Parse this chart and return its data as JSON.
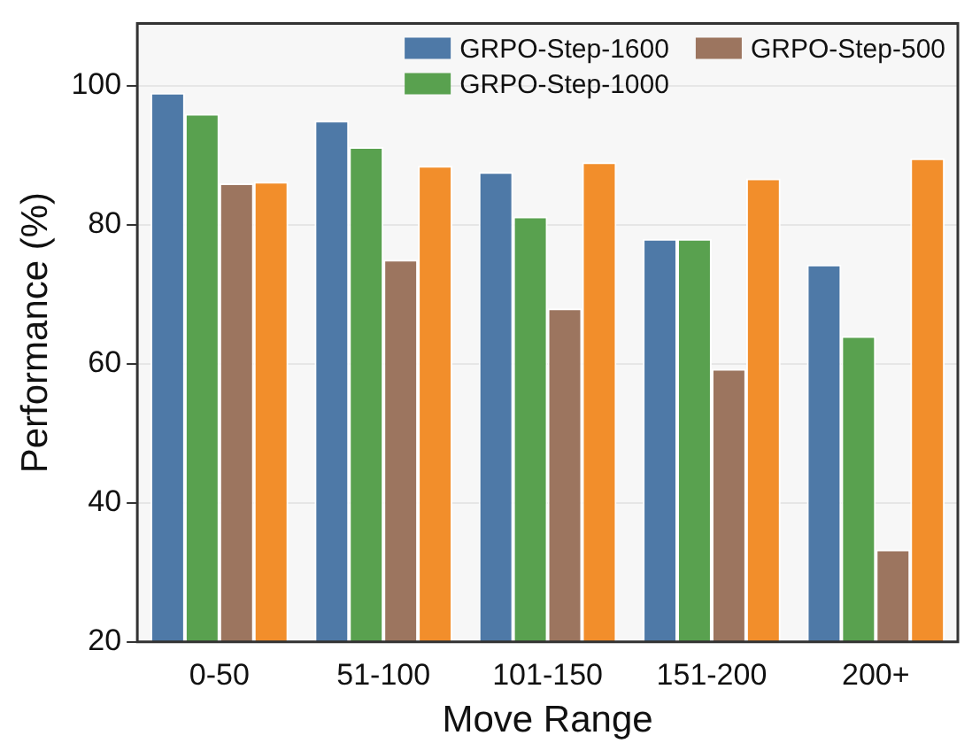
{
  "chart_data": {
    "type": "bar",
    "xlabel": "Move Range",
    "ylabel": "Performance (%)",
    "categories": [
      "0-50",
      "51-100",
      "101-150",
      "151-200",
      "200+"
    ],
    "series": [
      {
        "name": "GRPO-Step-1600",
        "color": "#4e79a7",
        "values": [
          99,
          95,
          87.6,
          78,
          74.3
        ]
      },
      {
        "name": "GRPO-Step-1000",
        "color": "#59a14f",
        "values": [
          96,
          91.2,
          81.2,
          78,
          64
        ]
      },
      {
        "name": "GRPO-Step-500",
        "color": "#9c755f",
        "values": [
          86,
          75,
          68,
          59.3,
          33.3
        ]
      },
      {
        "color": "#f28e2b",
        "values": [
          86.2,
          88.5,
          89,
          86.7,
          89.6
        ]
      }
    ],
    "ylim": [
      20,
      109
    ],
    "yticks": [
      20,
      40,
      60,
      80,
      100
    ],
    "grid": "y",
    "legend": "top right"
  }
}
